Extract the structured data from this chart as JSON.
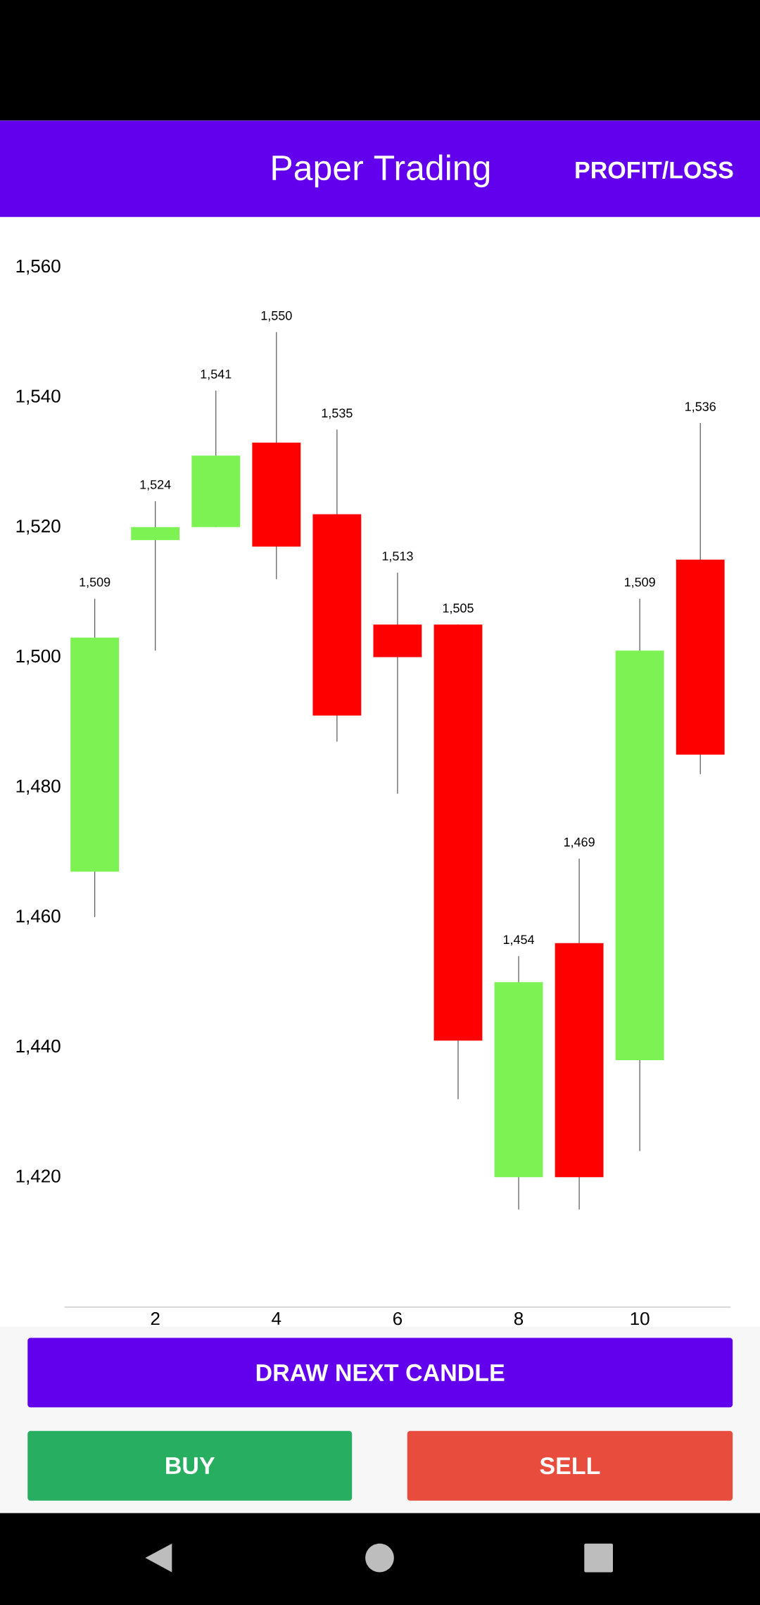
{
  "chart_data": {
    "type": "candlestick",
    "title": "Paper Trading",
    "x": [
      1,
      2,
      3,
      4,
      5,
      6,
      7,
      8,
      9,
      10,
      11
    ],
    "ohlc": [
      [
        1467,
        1509,
        1460,
        1503
      ],
      [
        1518,
        1524,
        1501,
        1520
      ],
      [
        1520,
        1541,
        1520,
        1531
      ],
      [
        1533,
        1550,
        1512,
        1517
      ],
      [
        1522,
        1535,
        1487,
        1491
      ],
      [
        1505,
        1513,
        1479,
        1500
      ],
      [
        1505,
        1505,
        1432,
        1441
      ],
      [
        1420,
        1454,
        1415,
        1450
      ],
      [
        1456,
        1469,
        1415,
        1420
      ],
      [
        1438,
        1509,
        1424,
        1501
      ],
      [
        1515,
        1536,
        1482,
        1485
      ]
    ],
    "colors": [
      "#7cf353",
      "#7cf353",
      "#7cf353",
      "#ff0000",
      "#ff0000",
      "#ff0000",
      "#ff0000",
      "#7cf353",
      "#ff0000",
      "#7cf353",
      "#ff0000"
    ],
    "xlim": [
      0.5,
      11.5
    ],
    "xticks": [
      2,
      4,
      6,
      8,
      10
    ],
    "ylim": [
      1400,
      1560
    ],
    "yticks": [
      {
        "value": 1420,
        "label": "1,420"
      },
      {
        "value": 1440,
        "label": "1,440"
      },
      {
        "value": 1460,
        "label": "1,460"
      },
      {
        "value": 1480,
        "label": "1,480"
      },
      {
        "value": 1500,
        "label": "1,500"
      },
      {
        "value": 1520,
        "label": "1,520"
      },
      {
        "value": 1540,
        "label": "1,540"
      },
      {
        "value": 1560,
        "label": "1,560"
      }
    ],
    "annotations": [
      "PROFIT/LOSS",
      "DRAW NEXT CANDLE",
      "BUY",
      "SELL",
      {
        "text": "1,509",
        "x": 1,
        "y": 1509
      },
      {
        "text": "1,524",
        "x": 2,
        "y": 1524
      },
      {
        "text": "1,541",
        "x": 3,
        "y": 1541
      },
      {
        "text": "1,550",
        "x": 4,
        "y": 1550
      },
      {
        "text": "1,535",
        "x": 5,
        "y": 1535
      },
      {
        "text": "1,513",
        "x": 6,
        "y": 1513
      },
      {
        "text": "1,505",
        "x": 7,
        "y": 1505
      },
      {
        "text": "1,454",
        "x": 8,
        "y": 1454
      },
      {
        "text": "1,469",
        "x": 9,
        "y": 1469
      },
      {
        "text": "1,509",
        "x": 10,
        "y": 1509
      },
      {
        "text": "1,536",
        "x": 11,
        "y": 1536
      }
    ]
  }
}
